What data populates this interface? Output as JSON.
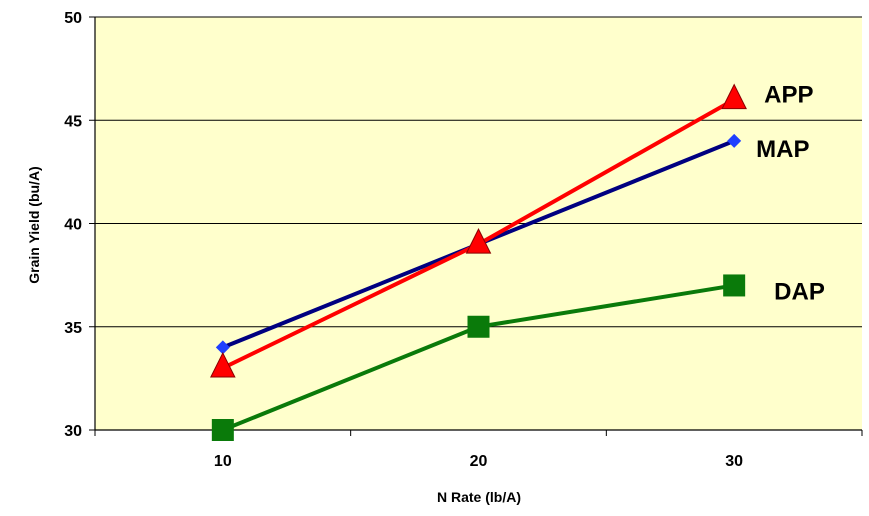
{
  "chart_data": {
    "type": "line",
    "xlabel": "N Rate (lb/A)",
    "ylabel": "Grain Yield (bu/A)",
    "categories": [
      "10",
      "20",
      "30"
    ],
    "x": [
      10,
      20,
      30
    ],
    "ylim": [
      30,
      50
    ],
    "yticks": [
      "30",
      "35",
      "40",
      "45",
      "50"
    ],
    "grid": true,
    "plot_background": "#FFFFCC",
    "series": [
      {
        "name": "MAP",
        "values": [
          34,
          39,
          44
        ],
        "color": "#000080",
        "marker_color": "#1F3FFF",
        "marker": "diamond"
      },
      {
        "name": "APP",
        "values": [
          33,
          39,
          46
        ],
        "color": "#FF0000",
        "marker_color": "#FF0000",
        "marker": "triangle"
      },
      {
        "name": "DAP",
        "values": [
          30,
          35,
          37
        ],
        "color": "#0A7A0A",
        "marker_color": "#0A7A0A",
        "marker": "square"
      }
    ]
  }
}
